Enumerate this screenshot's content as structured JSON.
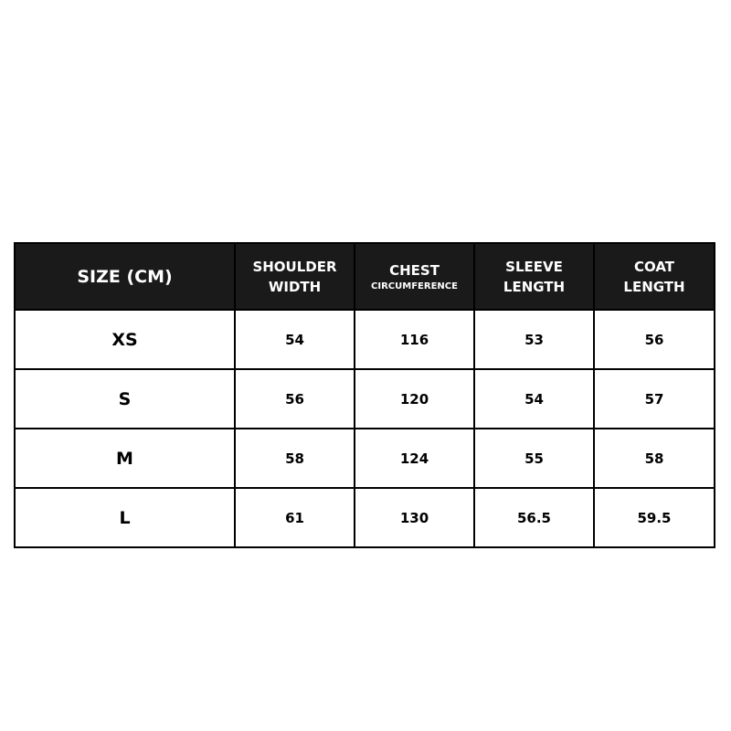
{
  "headers": [
    {
      "line1": "SIZE (CM)",
      "line2": ""
    },
    {
      "line1": "SHOULDER",
      "line2": "WIDTH"
    },
    {
      "line1": "CHEST",
      "sub": "CIRCUMFERENCE"
    },
    {
      "line1": "SLEEVE",
      "line2": "LENGTH"
    },
    {
      "line1": "COAT",
      "line2": "LENGTH"
    }
  ],
  "rows": [
    [
      "XS",
      "54",
      "116",
      "53",
      "56"
    ],
    [
      "S",
      "56",
      "120",
      "54",
      "57"
    ],
    [
      "M",
      "58",
      "124",
      "55",
      "58"
    ],
    [
      "L",
      "61",
      "130",
      "56.5",
      "59.5"
    ]
  ],
  "colors": {
    "header_bg": "#1a1a1a",
    "header_text": "#ffffff",
    "border": "#000000"
  }
}
